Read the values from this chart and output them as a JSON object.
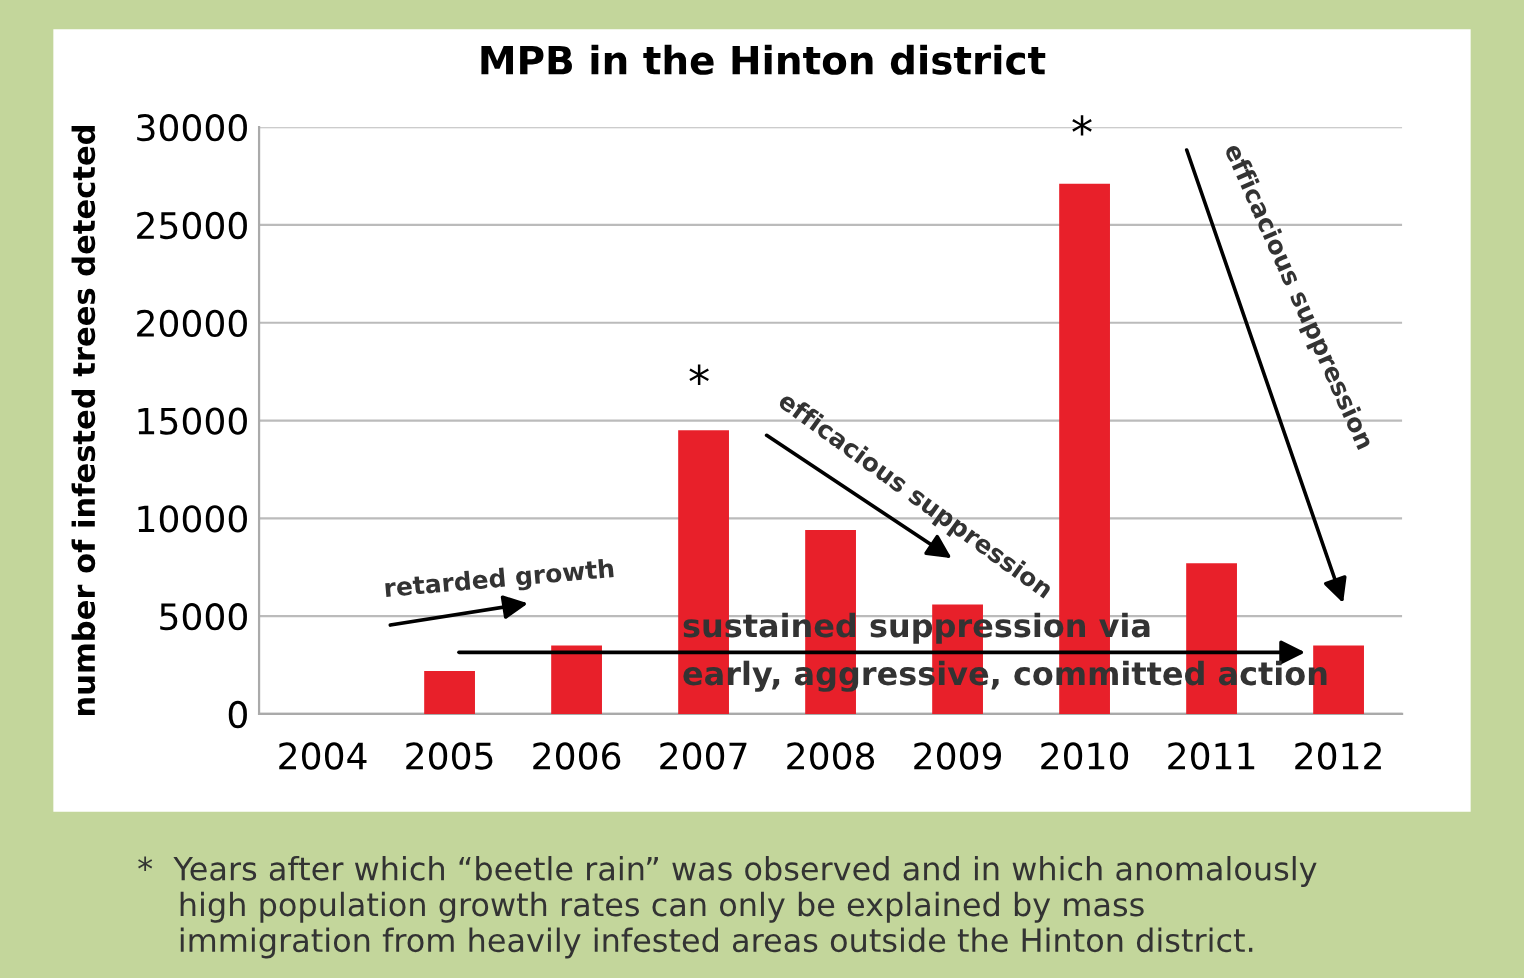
{
  "chart_data": {
    "type": "bar",
    "title": "MPB in the Hinton district",
    "ylabel": "number of infested trees detected",
    "categories": [
      "2004",
      "2005",
      "2006",
      "2007",
      "2008",
      "2009",
      "2010",
      "2011",
      "2012"
    ],
    "values": [
      null,
      2200,
      3500,
      14500,
      9400,
      5600,
      27100,
      7700,
      3500
    ],
    "color": "#e8202a",
    "ylim": [
      0,
      30000
    ],
    "yticks": [
      0,
      5000,
      10000,
      15000,
      20000,
      25000,
      30000
    ],
    "grid": "y",
    "annotations": [
      "retarded growth",
      "efficacious suppression",
      "efficacious suppression",
      "sustained suppression via\nearly, aggressive, committed action",
      "*",
      "*",
      "*  Years after which “beetle rain” was observed and in which anomalously\n    high population growth rates can only be explained by mass\n    immigration from heavily infested areas outside the Hinton district."
    ]
  }
}
